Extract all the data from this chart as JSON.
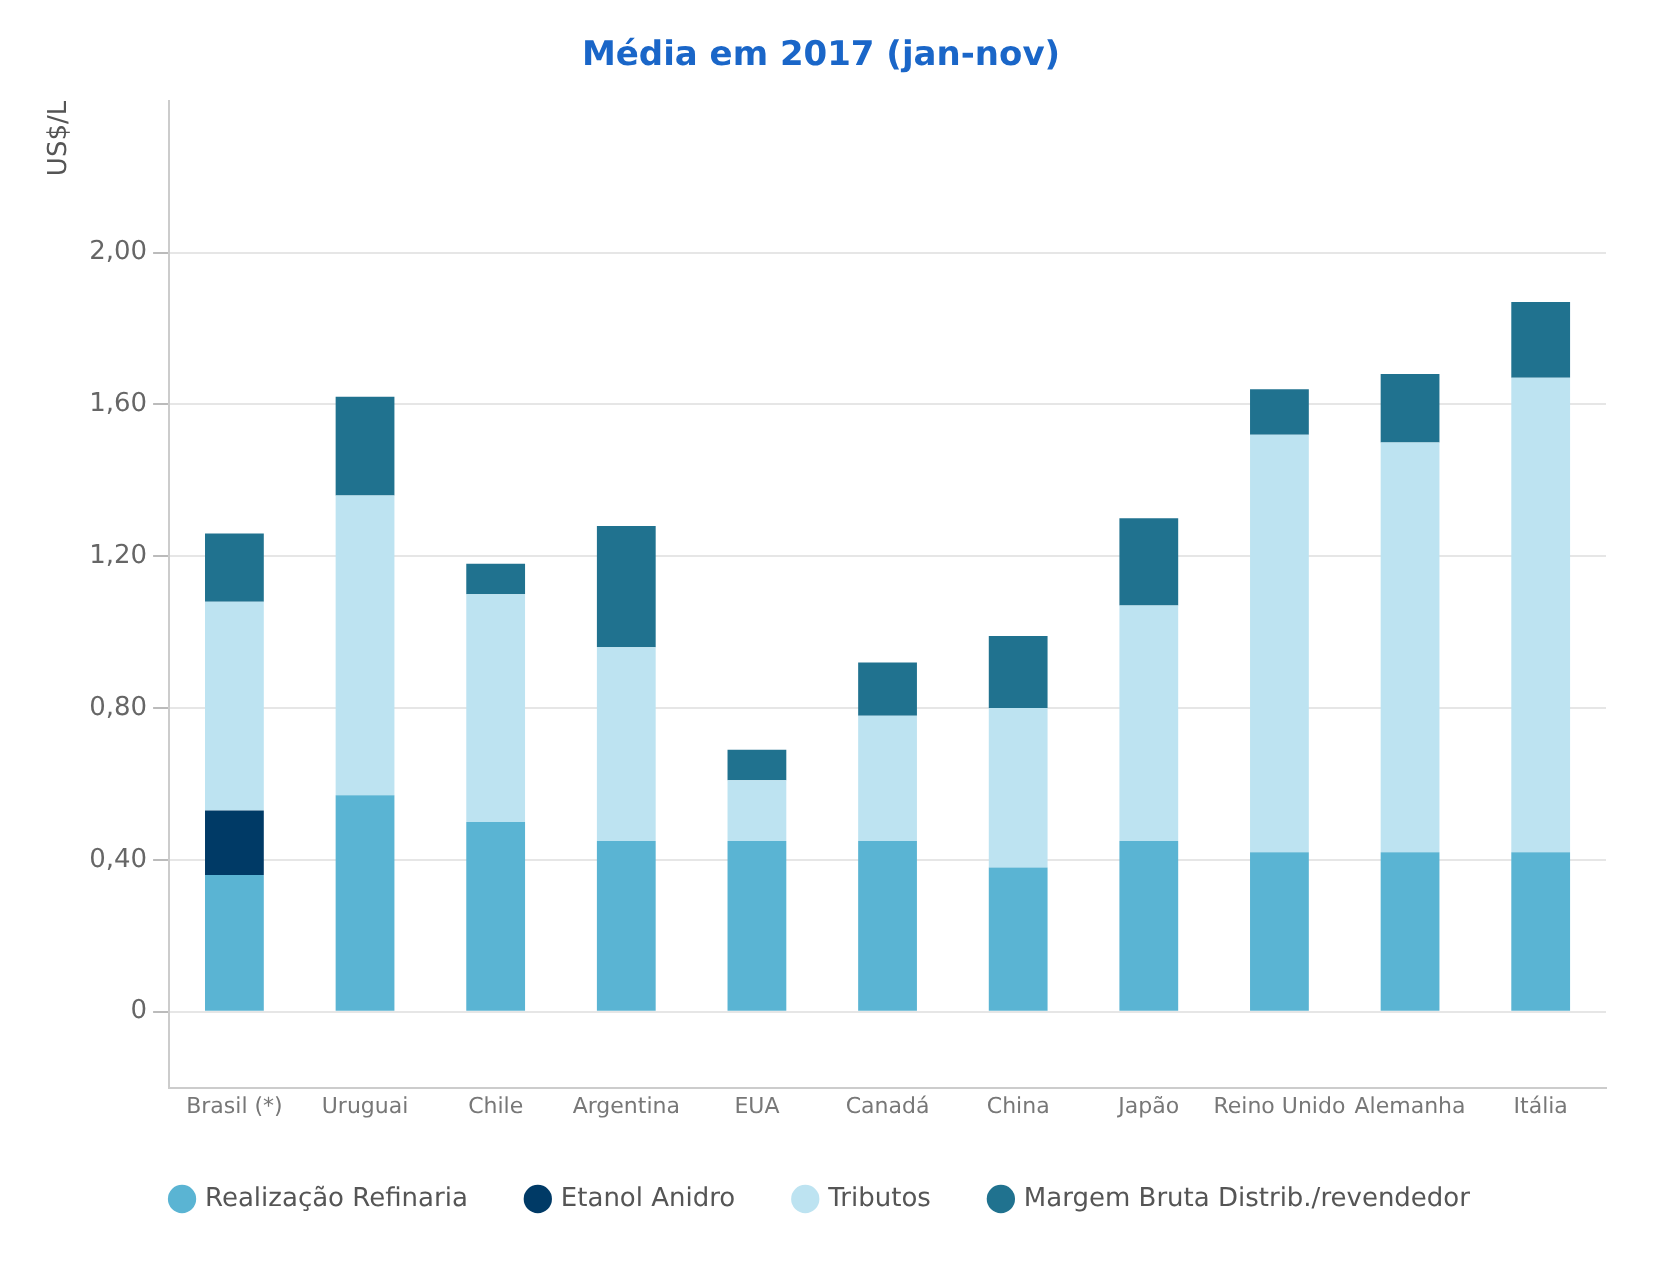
{
  "chart_data": {
    "type": "bar",
    "title": "Média em 2017 (jan-nov)",
    "ylabel": "US$/L",
    "stacked": true,
    "categories": [
      "Brasil (*)",
      "Uruguai",
      "Chile",
      "Argentina",
      "EUA",
      "Canadá",
      "China",
      "Japão",
      "Reino Unido",
      "Alemanha",
      "Itália"
    ],
    "series": [
      {
        "name": "Realização Refinaria",
        "color": "#5ab4d3",
        "values": [
          0.36,
          0.57,
          0.5,
          0.45,
          0.45,
          0.45,
          0.38,
          0.45,
          0.42,
          0.42,
          0.42
        ]
      },
      {
        "name": "Etanol Anidro",
        "color": "#003a66",
        "values": [
          0.17,
          null,
          null,
          null,
          null,
          null,
          null,
          null,
          null,
          null,
          null
        ]
      },
      {
        "name": "Tributos",
        "color": "#bde3f1",
        "values": [
          0.55,
          0.79,
          0.6,
          0.51,
          0.16,
          0.33,
          0.42,
          0.62,
          1.1,
          1.08,
          1.25
        ]
      },
      {
        "name": "Margem Bruta Distrib./revendedor",
        "color": "#20728f",
        "values": [
          0.18,
          0.26,
          0.08,
          0.32,
          0.08,
          0.14,
          0.19,
          0.23,
          0.12,
          0.18,
          0.2
        ]
      }
    ],
    "ylim": [
      -0.2,
      2.4
    ],
    "yticks": [
      {
        "value": 0,
        "label": "0"
      },
      {
        "value": 0.4,
        "label": "0,40"
      },
      {
        "value": 0.8,
        "label": "0,80"
      },
      {
        "value": 1.2,
        "label": "1,20"
      },
      {
        "value": 1.6,
        "label": "1,60"
      },
      {
        "value": 2.0,
        "label": "2,00"
      }
    ],
    "grid": "y",
    "legend": "bottom"
  }
}
